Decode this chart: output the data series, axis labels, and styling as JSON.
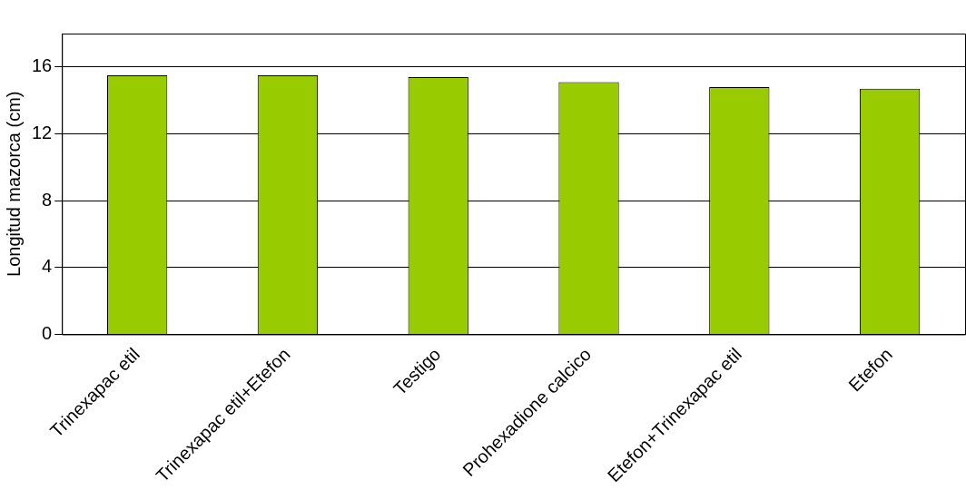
{
  "chart_data": {
    "type": "bar",
    "ylabel": "Longitud mazorca (cm)",
    "categories": [
      "Trinexapac etil",
      "Trinexapac etil+Etefon",
      "Testigo",
      "Prohexadione calcico",
      "Etefon+Trinexapac etil",
      "Etefon"
    ],
    "values": [
      15.5,
      15.5,
      15.4,
      15.1,
      14.8,
      14.7
    ],
    "color": "#99cc00",
    "ylim": [
      0,
      18
    ],
    "yticks": [
      0,
      4,
      8,
      12,
      16
    ],
    "grid": "y",
    "legend": false
  }
}
